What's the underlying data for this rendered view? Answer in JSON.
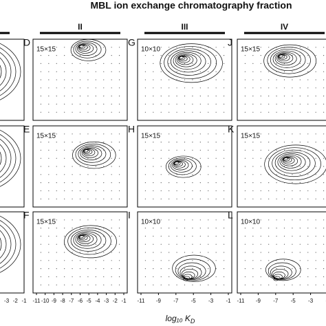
{
  "chart_data": {
    "type": "contour",
    "title": "MBL ion exchange chromatography fraction",
    "columns": [
      "II",
      "III",
      "IV"
    ],
    "panels": [
      {
        "label": "D",
        "grid": "15×15"
      },
      {
        "label": "E",
        "grid": "15×15"
      },
      {
        "label": "F",
        "grid": "15×15"
      },
      {
        "label": "G",
        "grid": "10×10"
      },
      {
        "label": "H",
        "grid": "15×15"
      },
      {
        "label": "I",
        "grid": "10×10"
      },
      {
        "label": "J",
        "grid": "15×15"
      },
      {
        "label": "K",
        "grid": "15×15"
      },
      {
        "label": "L",
        "grid": "10×10"
      }
    ],
    "xlim": [
      -11,
      -1
    ],
    "xticks": [
      -11,
      -10,
      -9,
      -8,
      -7,
      -6,
      -5,
      -4,
      -3,
      -2,
      -1
    ],
    "xlabel": "log₁₀ K",
    "xlabel_sub": "D"
  }
}
